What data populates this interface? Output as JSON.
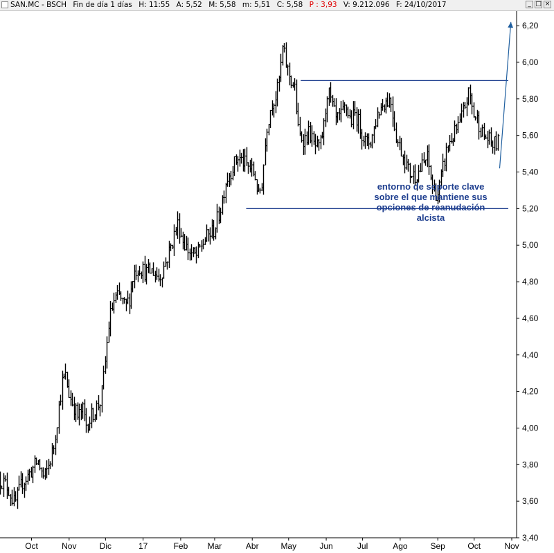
{
  "header": {
    "symbol": "SAN.MC - BSCH",
    "period": "Fin de día 1 días",
    "hour": "H: 11:55",
    "open": "A: 5,52",
    "high": "M: 5,58",
    "low": "m: 5,51",
    "close": "C: 5,58",
    "change": "P : 3,93",
    "volume": "V: 9.212.096",
    "date": "F: 24/10/2017",
    "window_buttons": [
      "_",
      "□",
      "×"
    ]
  },
  "chart_data": {
    "type": "line",
    "style": "ohlc-bars",
    "colors": {
      "bars": "#000000",
      "annotation": "#1f3f8f",
      "arrow": "#1f5f9f",
      "background": "#ffffff"
    },
    "ylim": [
      3.4,
      6.28
    ],
    "grid": false,
    "y_axis_position": "right",
    "y_ticks": [
      "6,20",
      "6,00",
      "5,80",
      "5,60",
      "5,40",
      "5,20",
      "5,00",
      "4,80",
      "4,60",
      "4,40",
      "4,20",
      "4,00",
      "3,80",
      "3,60",
      "3,40"
    ],
    "y_tick_values": [
      6.2,
      6.0,
      5.8,
      5.6,
      5.4,
      5.2,
      5.0,
      4.8,
      4.6,
      4.4,
      4.2,
      4.0,
      3.8,
      3.6,
      3.4
    ],
    "x_ticks": [
      "Oct",
      "Nov",
      "Dic",
      "17",
      "Feb",
      "Mar",
      "Abr",
      "May",
      "Jun",
      "Jul",
      "Ago",
      "Sep",
      "Oct",
      "Nov"
    ],
    "x_tick_days": [
      0,
      31,
      61,
      92,
      123,
      151,
      182,
      212,
      243,
      273,
      304,
      335,
      365,
      396
    ],
    "x_range_days": [
      -26,
      400
    ],
    "series": [
      {
        "close_points": [
          [
            -26,
            3.72
          ],
          [
            -20,
            3.68
          ],
          [
            -14,
            3.58
          ],
          [
            -8,
            3.7
          ],
          [
            -3,
            3.74
          ],
          [
            5,
            3.82
          ],
          [
            10,
            3.72
          ],
          [
            14,
            3.8
          ],
          [
            18,
            3.9
          ],
          [
            22,
            4.1
          ],
          [
            25,
            4.25
          ],
          [
            28,
            4.28
          ],
          [
            31,
            4.18
          ],
          [
            35,
            4.12
          ],
          [
            38,
            4.06
          ],
          [
            42,
            4.1
          ],
          [
            45,
            4.02
          ],
          [
            48,
            4.05
          ],
          [
            52,
            4.1
          ],
          [
            57,
            4.15
          ],
          [
            60,
            4.32
          ],
          [
            64,
            4.6
          ],
          [
            68,
            4.7
          ],
          [
            72,
            4.72
          ],
          [
            77,
            4.66
          ],
          [
            81,
            4.72
          ],
          [
            84,
            4.85
          ],
          [
            89,
            4.88
          ],
          [
            94,
            4.85
          ],
          [
            100,
            4.86
          ],
          [
            105,
            4.82
          ],
          [
            110,
            4.9
          ],
          [
            115,
            5.0
          ],
          [
            120,
            5.12
          ],
          [
            125,
            5.02
          ],
          [
            128,
            4.98
          ],
          [
            132,
            4.95
          ],
          [
            136,
            4.94
          ],
          [
            140,
            5.0
          ],
          [
            145,
            5.05
          ],
          [
            150,
            5.08
          ],
          [
            155,
            5.18
          ],
          [
            160,
            5.35
          ],
          [
            165,
            5.42
          ],
          [
            170,
            5.48
          ],
          [
            175,
            5.45
          ],
          [
            180,
            5.42
          ],
          [
            184,
            5.38
          ],
          [
            187,
            5.26
          ],
          [
            190,
            5.35
          ],
          [
            194,
            5.65
          ],
          [
            198,
            5.78
          ],
          [
            202,
            5.82
          ],
          [
            205,
            5.95
          ],
          [
            207,
            6.08
          ],
          [
            210,
            5.98
          ],
          [
            214,
            5.9
          ],
          [
            217,
            5.85
          ],
          [
            220,
            5.6
          ],
          [
            225,
            5.58
          ],
          [
            229,
            5.62
          ],
          [
            232,
            5.55
          ],
          [
            237,
            5.52
          ],
          [
            241,
            5.65
          ],
          [
            244,
            5.85
          ],
          [
            247,
            5.78
          ],
          [
            251,
            5.68
          ],
          [
            255,
            5.7
          ],
          [
            259,
            5.76
          ],
          [
            263,
            5.68
          ],
          [
            267,
            5.72
          ],
          [
            272,
            5.62
          ],
          [
            276,
            5.55
          ],
          [
            280,
            5.58
          ],
          [
            285,
            5.72
          ],
          [
            290,
            5.78
          ],
          [
            296,
            5.8
          ],
          [
            301,
            5.58
          ],
          [
            306,
            5.5
          ],
          [
            311,
            5.4
          ],
          [
            316,
            5.38
          ],
          [
            321,
            5.42
          ],
          [
            326,
            5.48
          ],
          [
            331,
            5.3
          ],
          [
            335,
            5.28
          ],
          [
            339,
            5.42
          ],
          [
            343,
            5.55
          ],
          [
            348,
            5.6
          ],
          [
            353,
            5.66
          ],
          [
            358,
            5.78
          ],
          [
            361,
            5.84
          ],
          [
            364,
            5.72
          ],
          [
            368,
            5.68
          ],
          [
            372,
            5.6
          ],
          [
            376,
            5.58
          ],
          [
            380,
            5.55
          ],
          [
            385,
            5.56
          ]
        ]
      }
    ],
    "annotations": {
      "resistance_level": 5.9,
      "support_level": 5.2,
      "resistance_range_days": [
        222,
        400
      ],
      "support_range_days": [
        177,
        400
      ],
      "arrow_from": [
        386,
        5.42
      ],
      "arrow_to": [
        401,
        6.22
      ],
      "note_lines": [
        "entorno de soporte clave",
        "sobre el que mantiene sus",
        "opciones de reanudación",
        "alcista"
      ]
    }
  }
}
